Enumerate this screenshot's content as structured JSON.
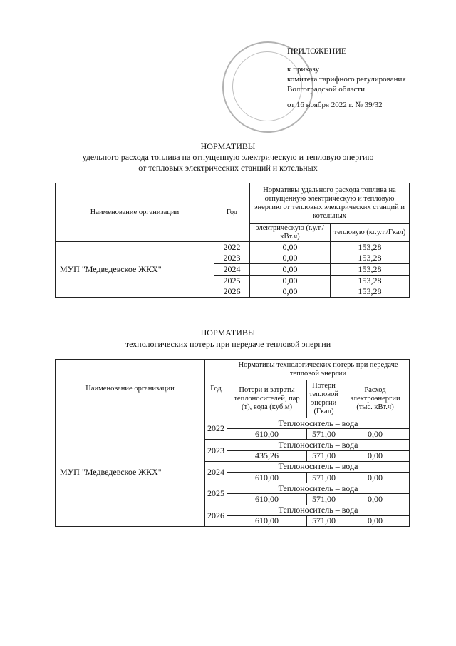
{
  "header": {
    "appendix": "ПРИЛОЖЕНИЕ",
    "line1": "к приказу",
    "line2": "комитета тарифного регулирования",
    "line3": "Волгоградской области",
    "date_line": "от 16 ноября 2022 г. № 39/32"
  },
  "table1": {
    "title": "НОРМАТИВЫ",
    "subtitle1": "удельного расхода топлива на отпущенную электрическую и тепловую энергию",
    "subtitle2": "от тепловых электрических станций и котельных",
    "col_org": "Наименование организации",
    "col_year": "Год",
    "col_group": "Нормативы удельного расхода топлива на отпущенную электрическую и тепловую энергию от тепловых электрических станций и  котельных",
    "col_elec": "электрическую (г.у.т./кВт.ч)",
    "col_heat": "тепловую (кг.у.т./Гкал)",
    "org": "МУП \"Медведевское ЖКХ\"",
    "rows": [
      {
        "year": "2022",
        "elec": "0,00",
        "heat": "153,28"
      },
      {
        "year": "2023",
        "elec": "0,00",
        "heat": "153,28"
      },
      {
        "year": "2024",
        "elec": "0,00",
        "heat": "153,28"
      },
      {
        "year": "2025",
        "elec": "0,00",
        "heat": "153,28"
      },
      {
        "year": "2026",
        "elec": "0,00",
        "heat": "153,28"
      }
    ]
  },
  "table2": {
    "title": "НОРМАТИВЫ",
    "subtitle": "технологических потерь при передаче тепловой энергии",
    "col_org": "Наименование организации",
    "col_year": "Год",
    "col_group": "Нормативы технологических потерь при передаче тепловой энергии",
    "col_carrier": "Потери и затраты теплоносителей, пар (т), вода (куб.м)",
    "col_heatloss": "Потери тепловой энергии (Гкал)",
    "col_power": "Расход электроэнергии (тыс. кВт.ч)",
    "org": "МУП \"Медведевское ЖКХ\"",
    "rows": [
      {
        "year": "2022",
        "carrier": "Теплоноситель – вода",
        "c1": "610,00",
        "c2": "571,00",
        "c3": "0,00"
      },
      {
        "year": "2023",
        "carrier": "Теплоноситель – вода",
        "c1": "435,26",
        "c2": "571,00",
        "c3": "0,00"
      },
      {
        "year": "2024",
        "carrier": "Теплоноситель – вода",
        "c1": "610,00",
        "c2": "571,00",
        "c3": "0,00"
      },
      {
        "year": "2025",
        "carrier": "Теплоноситель – вода",
        "c1": "610,00",
        "c2": "571,00",
        "c3": "0,00"
      },
      {
        "year": "2026",
        "carrier": "Теплоноситель – вода",
        "c1": "610,00",
        "c2": "571,00",
        "c3": "0,00"
      }
    ]
  }
}
